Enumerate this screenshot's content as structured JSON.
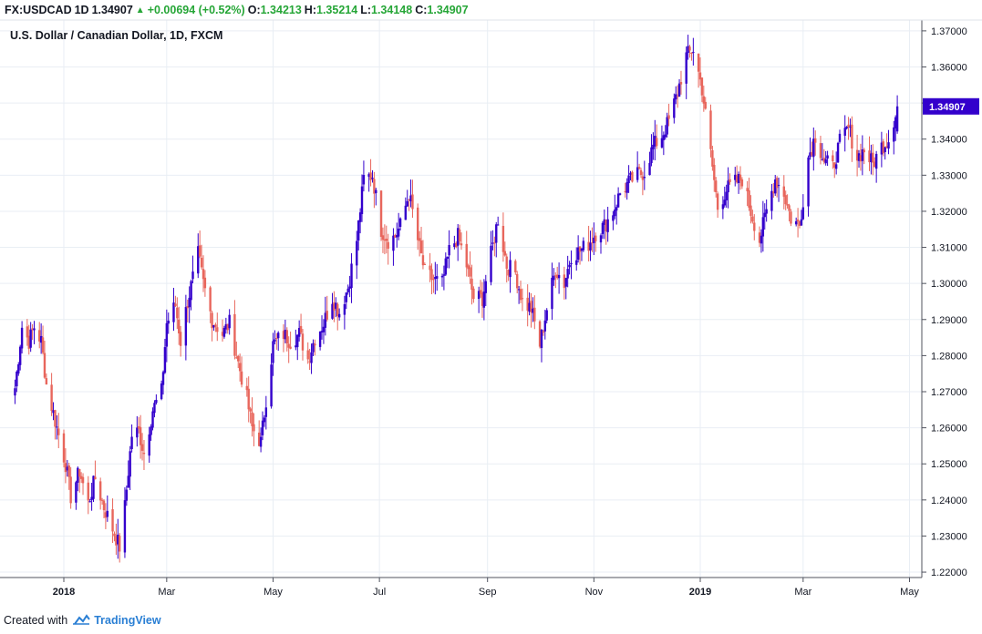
{
  "header": {
    "symbol": "FX:USDCAD",
    "interval": "1D",
    "last": "1.34907",
    "change": "+0.00694 (+0.52%)",
    "open_label": "O:",
    "open": "1.34213",
    "high_label": "H:",
    "high": "1.35214",
    "low_label": "L:",
    "low": "1.34148",
    "close_label": "C:",
    "close": "1.34907",
    "up_color": "#26a637"
  },
  "footer": {
    "created_with": "Created with",
    "brand": "TradingView",
    "icon": "tradingview-cloud-icon"
  },
  "colors": {
    "up_candle": "#3300cc",
    "down_candle": "#e8665c",
    "grid": "#e9eef4",
    "axis": "#50535e",
    "last_price_tag": "#3300cc"
  },
  "chart_data": {
    "type": "candlestick",
    "title": "U.S. Dollar / Canadian Dollar, 1D, FXCM",
    "ylim": [
      1.2185,
      1.373
    ],
    "y_ticks": [
      "1.22000",
      "1.23000",
      "1.24000",
      "1.25000",
      "1.26000",
      "1.27000",
      "1.28000",
      "1.29000",
      "1.30000",
      "1.31000",
      "1.32000",
      "1.33000",
      "1.34000",
      "1.35000",
      "1.36000",
      "1.37000"
    ],
    "x_ticks": [
      {
        "label": "2018",
        "date": "2018-01-01",
        "bold": true
      },
      {
        "label": "Mar",
        "date": "2018-03-01",
        "bold": false
      },
      {
        "label": "May",
        "date": "2018-05-01",
        "bold": false
      },
      {
        "label": "Jul",
        "date": "2018-07-01",
        "bold": false
      },
      {
        "label": "Sep",
        "date": "2018-09-01",
        "bold": false
      },
      {
        "label": "Nov",
        "date": "2018-11-01",
        "bold": false
      },
      {
        "label": "2019",
        "date": "2019-01-01",
        "bold": true
      },
      {
        "label": "Mar",
        "date": "2019-03-01",
        "bold": false
      },
      {
        "label": "May",
        "date": "2019-05-01",
        "bold": false
      }
    ],
    "last_price": "1.34907",
    "closes": [
      {
        "date": "2017-12-04",
        "close": 1.271
      },
      {
        "date": "2017-12-08",
        "close": 1.288
      },
      {
        "date": "2017-12-12",
        "close": 1.284
      },
      {
        "date": "2017-12-15",
        "close": 1.288
      },
      {
        "date": "2017-12-19",
        "close": 1.284
      },
      {
        "date": "2017-12-22",
        "close": 1.272
      },
      {
        "date": "2017-12-27",
        "close": 1.262
      },
      {
        "date": "2018-01-02",
        "close": 1.25
      },
      {
        "date": "2018-01-05",
        "close": 1.241
      },
      {
        "date": "2018-01-10",
        "close": 1.248
      },
      {
        "date": "2018-01-15",
        "close": 1.239
      },
      {
        "date": "2018-01-19",
        "close": 1.246
      },
      {
        "date": "2018-01-24",
        "close": 1.238
      },
      {
        "date": "2018-01-29",
        "close": 1.232
      },
      {
        "date": "2018-02-02",
        "close": 1.227
      },
      {
        "date": "2018-02-05",
        "close": 1.238
      },
      {
        "date": "2018-02-09",
        "close": 1.258
      },
      {
        "date": "2018-02-13",
        "close": 1.259
      },
      {
        "date": "2018-02-16",
        "close": 1.253
      },
      {
        "date": "2018-02-21",
        "close": 1.265
      },
      {
        "date": "2018-02-26",
        "close": 1.27
      },
      {
        "date": "2018-03-01",
        "close": 1.289
      },
      {
        "date": "2018-03-06",
        "close": 1.294
      },
      {
        "date": "2018-03-09",
        "close": 1.284
      },
      {
        "date": "2018-03-13",
        "close": 1.295
      },
      {
        "date": "2018-03-19",
        "close": 1.308
      },
      {
        "date": "2018-03-22",
        "close": 1.3
      },
      {
        "date": "2018-03-27",
        "close": 1.29
      },
      {
        "date": "2018-04-02",
        "close": 1.286
      },
      {
        "date": "2018-04-06",
        "close": 1.289
      },
      {
        "date": "2018-04-11",
        "close": 1.278
      },
      {
        "date": "2018-04-16",
        "close": 1.268
      },
      {
        "date": "2018-04-19",
        "close": 1.26
      },
      {
        "date": "2018-04-24",
        "close": 1.256
      },
      {
        "date": "2018-04-27",
        "close": 1.268
      },
      {
        "date": "2018-05-01",
        "close": 1.283
      },
      {
        "date": "2018-05-07",
        "close": 1.286
      },
      {
        "date": "2018-05-11",
        "close": 1.284
      },
      {
        "date": "2018-05-16",
        "close": 1.286
      },
      {
        "date": "2018-05-21",
        "close": 1.279
      },
      {
        "date": "2018-05-25",
        "close": 1.285
      },
      {
        "date": "2018-05-30",
        "close": 1.289
      },
      {
        "date": "2018-06-04",
        "close": 1.296
      },
      {
        "date": "2018-06-08",
        "close": 1.292
      },
      {
        "date": "2018-06-13",
        "close": 1.299
      },
      {
        "date": "2018-06-18",
        "close": 1.312
      },
      {
        "date": "2018-06-22",
        "close": 1.329
      },
      {
        "date": "2018-06-27",
        "close": 1.33
      },
      {
        "date": "2018-07-02",
        "close": 1.315
      },
      {
        "date": "2018-07-06",
        "close": 1.312
      },
      {
        "date": "2018-07-10",
        "close": 1.313
      },
      {
        "date": "2018-07-13",
        "close": 1.316
      },
      {
        "date": "2018-07-18",
        "close": 1.325
      },
      {
        "date": "2018-07-23",
        "close": 1.312
      },
      {
        "date": "2018-07-27",
        "close": 1.303
      },
      {
        "date": "2018-08-01",
        "close": 1.301
      },
      {
        "date": "2018-08-06",
        "close": 1.3
      },
      {
        "date": "2018-08-10",
        "close": 1.309
      },
      {
        "date": "2018-08-15",
        "close": 1.313
      },
      {
        "date": "2018-08-20",
        "close": 1.305
      },
      {
        "date": "2018-08-24",
        "close": 1.296
      },
      {
        "date": "2018-08-29",
        "close": 1.296
      },
      {
        "date": "2018-09-03",
        "close": 1.308
      },
      {
        "date": "2018-09-07",
        "close": 1.318
      },
      {
        "date": "2018-09-12",
        "close": 1.305
      },
      {
        "date": "2018-09-17",
        "close": 1.303
      },
      {
        "date": "2018-09-21",
        "close": 1.295
      },
      {
        "date": "2018-09-26",
        "close": 1.293
      },
      {
        "date": "2018-10-01",
        "close": 1.283
      },
      {
        "date": "2018-10-05",
        "close": 1.293
      },
      {
        "date": "2018-10-10",
        "close": 1.304
      },
      {
        "date": "2018-10-15",
        "close": 1.3
      },
      {
        "date": "2018-10-19",
        "close": 1.308
      },
      {
        "date": "2018-10-24",
        "close": 1.309
      },
      {
        "date": "2018-10-29",
        "close": 1.311
      },
      {
        "date": "2018-11-02",
        "close": 1.314
      },
      {
        "date": "2018-11-07",
        "close": 1.316
      },
      {
        "date": "2018-11-12",
        "close": 1.32
      },
      {
        "date": "2018-11-16",
        "close": 1.325
      },
      {
        "date": "2018-11-21",
        "close": 1.328
      },
      {
        "date": "2018-11-26",
        "close": 1.33
      },
      {
        "date": "2018-11-30",
        "close": 1.331
      },
      {
        "date": "2018-12-05",
        "close": 1.338
      },
      {
        "date": "2018-12-10",
        "close": 1.341
      },
      {
        "date": "2018-12-14",
        "close": 1.345
      },
      {
        "date": "2018-12-19",
        "close": 1.353
      },
      {
        "date": "2018-12-24",
        "close": 1.363
      },
      {
        "date": "2018-12-28",
        "close": 1.365
      },
      {
        "date": "2019-01-02",
        "close": 1.354
      },
      {
        "date": "2019-01-07",
        "close": 1.336
      },
      {
        "date": "2019-01-11",
        "close": 1.321
      },
      {
        "date": "2019-01-16",
        "close": 1.326
      },
      {
        "date": "2019-01-21",
        "close": 1.328
      },
      {
        "date": "2019-01-25",
        "close": 1.329
      },
      {
        "date": "2019-01-30",
        "close": 1.32
      },
      {
        "date": "2019-02-04",
        "close": 1.312
      },
      {
        "date": "2019-02-08",
        "close": 1.32
      },
      {
        "date": "2019-02-13",
        "close": 1.329
      },
      {
        "date": "2019-02-18",
        "close": 1.325
      },
      {
        "date": "2019-02-22",
        "close": 1.318
      },
      {
        "date": "2019-02-27",
        "close": 1.316
      },
      {
        "date": "2019-03-04",
        "close": 1.335
      },
      {
        "date": "2019-03-08",
        "close": 1.341
      },
      {
        "date": "2019-03-13",
        "close": 1.334
      },
      {
        "date": "2019-03-18",
        "close": 1.332
      },
      {
        "date": "2019-03-22",
        "close": 1.339
      },
      {
        "date": "2019-03-27",
        "close": 1.343
      },
      {
        "date": "2019-04-01",
        "close": 1.335
      },
      {
        "date": "2019-04-05",
        "close": 1.337
      },
      {
        "date": "2019-04-10",
        "close": 1.333
      },
      {
        "date": "2019-04-15",
        "close": 1.338
      },
      {
        "date": "2019-04-19",
        "close": 1.34
      },
      {
        "date": "2019-04-24",
        "close": 1.3491
      }
    ]
  }
}
